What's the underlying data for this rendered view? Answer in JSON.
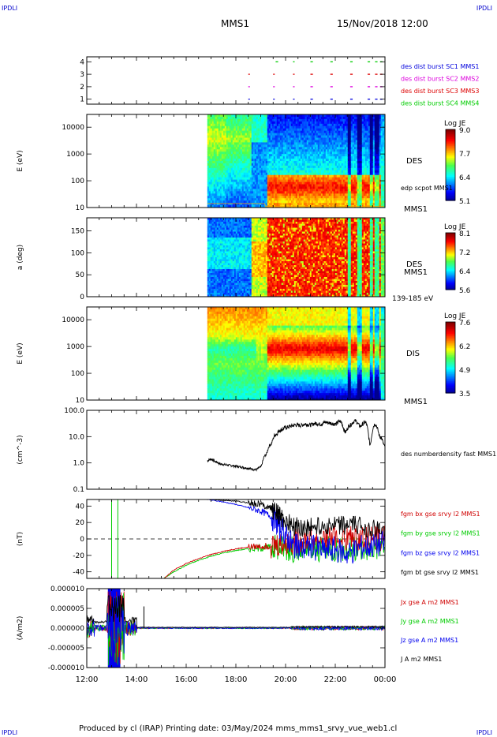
{
  "header": {
    "corner_left": "IPDLI",
    "corner_right": "IPDLI",
    "spacecraft": "MMS1",
    "datetime": "15/Nov/2018 12:00"
  },
  "footer": {
    "credit": "Produced by cl (IRAP)   Printing date: 03/May/2024   mms_mms1_srvy_vue_web1.cl",
    "corner_left": "IPDLI",
    "corner_right": "IPDLI"
  },
  "time_axis": {
    "start_hours": 12,
    "end_hours": 24,
    "tick_labels": [
      "12:00",
      "14:00",
      "16:00",
      "18:00",
      "20:00",
      "22:00",
      "00:00"
    ]
  },
  "colors": {
    "bx": "#d00000",
    "by": "#00cc00",
    "bz": "#0000ee",
    "bt": "#000000",
    "mms1": "#0000dd",
    "mms2": "#dd00dd",
    "mms3": "#dd0000",
    "mms4": "#00cc00"
  },
  "chart_data": [
    {
      "type": "scatter",
      "id": "burst",
      "y_ticks": [
        "1",
        "2",
        "3",
        "4"
      ],
      "ylim": [
        0.6,
        4.4
      ],
      "legend": [
        {
          "name": "des dist burst SC1 MMS1",
          "color": "#0000dd"
        },
        {
          "name": "des dist burst SC2 MMS2",
          "color": "#dd00dd"
        },
        {
          "name": "des dist burst SC3 MMS3",
          "color": "#dd0000"
        },
        {
          "name": "des dist burst SC4 MMS4",
          "color": "#00cc00"
        }
      ],
      "series": [
        {
          "level": 1,
          "color": "#0000dd",
          "segments": [
            [
              18.5,
              18.52
            ],
            [
              19.5,
              19.55
            ],
            [
              20.3,
              20.35
            ],
            [
              21.0,
              21.1
            ],
            [
              21.8,
              21.9
            ],
            [
              22.6,
              22.7
            ],
            [
              23.3,
              23.4
            ],
            [
              23.6,
              23.7
            ],
            [
              23.8,
              23.9
            ]
          ]
        },
        {
          "level": 2,
          "color": "#dd00dd",
          "segments": [
            [
              18.5,
              18.52
            ],
            [
              19.5,
              19.55
            ],
            [
              20.3,
              20.35
            ],
            [
              21.0,
              21.1
            ],
            [
              21.8,
              21.9
            ],
            [
              22.6,
              22.7
            ],
            [
              23.3,
              23.4
            ],
            [
              23.6,
              23.7
            ],
            [
              23.8,
              23.9
            ]
          ]
        },
        {
          "level": 3,
          "color": "#dd0000",
          "segments": [
            [
              18.5,
              18.52
            ],
            [
              19.5,
              19.55
            ],
            [
              20.3,
              20.35
            ],
            [
              21.0,
              21.1
            ],
            [
              21.8,
              21.9
            ],
            [
              22.6,
              22.7
            ],
            [
              23.3,
              23.4
            ],
            [
              23.6,
              23.7
            ],
            [
              23.8,
              23.9
            ]
          ]
        },
        {
          "level": 4,
          "color": "#00cc00",
          "segments": [
            [
              19.6,
              19.7
            ],
            [
              20.3,
              20.35
            ],
            [
              21.0,
              21.1
            ],
            [
              21.8,
              21.9
            ],
            [
              22.6,
              22.7
            ],
            [
              23.3,
              23.4
            ],
            [
              23.6,
              23.7
            ],
            [
              23.8,
              23.9
            ]
          ]
        }
      ]
    },
    {
      "type": "heatmap",
      "id": "des_energy",
      "ylabel": "E (eV)",
      "y_scale": "log",
      "ylim": [
        10,
        30000
      ],
      "y_ticks": [
        10,
        100,
        1000,
        10000
      ],
      "y_tick_labels": [
        "10",
        "100",
        "1000",
        "10000"
      ],
      "instrument_label": "DES",
      "spacecraft_label": "MMS1",
      "overlay_label": "edp scpot MMS1",
      "colorbar": {
        "title": "Log JE",
        "min": 5.1,
        "max": 9.05,
        "tick_labels": [
          "9.0",
          "7.7",
          "6.4",
          "5.1"
        ]
      },
      "data_start_hours": 16.85
    },
    {
      "type": "heatmap",
      "id": "des_pitch",
      "ylabel": "a (deg)",
      "ylim": [
        0,
        180
      ],
      "y_ticks": [
        0,
        50,
        100,
        150
      ],
      "y_tick_labels": [
        "0",
        "50",
        "100",
        "150"
      ],
      "instrument_label": "DES",
      "spacecraft_label": "MMS1",
      "energy_label": "139-185 eV",
      "colorbar": {
        "title": "Log JE",
        "min": 5.6,
        "max": 8.15,
        "tick_labels": [
          "8.1",
          "7.2",
          "6.4",
          "5.6"
        ]
      },
      "data_start_hours": 16.85
    },
    {
      "type": "heatmap",
      "id": "dis_energy",
      "ylabel": "E (eV)",
      "y_scale": "log",
      "ylim": [
        10,
        30000
      ],
      "y_ticks": [
        10,
        100,
        1000,
        10000
      ],
      "y_tick_labels": [
        "10",
        "100",
        "1000",
        "10000"
      ],
      "instrument_label": "DIS",
      "spacecraft_label": "MMS1",
      "colorbar": {
        "title": "Log JE",
        "min": 3.5,
        "max": 7.7,
        "tick_labels": [
          "7.6",
          "6.2",
          "4.9",
          "3.5"
        ]
      },
      "data_start_hours": 16.85
    },
    {
      "type": "line",
      "id": "density",
      "ylabel": "(cm^-3)",
      "y_scale": "log",
      "ylim": [
        0.1,
        100
      ],
      "y_ticks": [
        0.1,
        1,
        10,
        100
      ],
      "y_tick_labels": [
        "0.1",
        "1.0",
        "10.0",
        "100.0"
      ],
      "legend": [
        {
          "name": "des numberdensity fast MMS1",
          "color": "#000000"
        }
      ],
      "series": [
        {
          "name": "des numberdensity fast MMS1",
          "color": "#000000",
          "x": [
            16.85,
            17.0,
            17.2,
            17.4,
            17.6,
            17.8,
            18.0,
            18.2,
            18.4,
            18.6,
            18.8,
            19.0,
            19.2,
            19.4,
            19.6,
            19.8,
            20.0,
            20.2,
            20.4,
            20.6,
            20.8,
            21.0,
            21.2,
            21.4,
            21.6,
            21.8,
            22.0,
            22.2,
            22.4,
            22.6,
            22.8,
            23.0,
            23.2,
            23.4,
            23.6,
            23.8,
            24.0
          ],
          "y": [
            1.2,
            1.4,
            1.1,
            0.9,
            0.85,
            0.8,
            0.75,
            0.7,
            0.65,
            0.6,
            0.55,
            0.7,
            2.0,
            5.0,
            12.0,
            18.0,
            22.0,
            25.0,
            28.0,
            27.0,
            30.0,
            28.0,
            32.0,
            30.0,
            35.0,
            33.0,
            30.0,
            38.0,
            15.0,
            28.0,
            40.0,
            25.0,
            35.0,
            5.0,
            30.0,
            10.0,
            4.0
          ]
        }
      ]
    },
    {
      "type": "line",
      "id": "bfield",
      "ylabel": "(nT)",
      "ylim": [
        -48,
        48
      ],
      "y_ticks": [
        -40,
        -20,
        0,
        20,
        40
      ],
      "y_tick_labels": [
        "-40",
        "-20",
        "0",
        "20",
        "40"
      ],
      "legend": [
        {
          "name": "fgm bx gse srvy l2 MMS1",
          "color": "#d00000"
        },
        {
          "name": "fgm by gse srvy l2 MMS1",
          "color": "#00cc00"
        },
        {
          "name": "fgm bz gse srvy l2 MMS1",
          "color": "#0000ee"
        },
        {
          "name": "fgm bt gse srvy l2 MMS1",
          "color": "#000000"
        }
      ],
      "series": [
        {
          "name": "fgm bx gse srvy l2 MMS1",
          "color": "#d00000",
          "x": [
            15.1,
            15.5,
            16.0,
            16.5,
            17.0,
            17.5,
            18.0,
            18.5,
            19.0,
            19.4,
            19.8,
            20.2,
            20.6,
            21.0,
            21.5,
            22.0,
            22.5,
            23.0,
            23.5,
            24.0
          ],
          "y": [
            -48,
            -38,
            -30,
            -24,
            -19,
            -15,
            -12,
            -10,
            -9,
            -8,
            -6,
            -4,
            -2,
            -1,
            0,
            1,
            0,
            1,
            2,
            1
          ]
        },
        {
          "name": "fgm by gse srvy l2 MMS1",
          "color": "#00cc00",
          "x": [
            15.1,
            15.5,
            16.0,
            16.5,
            17.0,
            17.5,
            18.0,
            18.5,
            19.0,
            19.4,
            19.8,
            20.2,
            20.6,
            21.0,
            21.5,
            22.0,
            22.5,
            23.0,
            23.5,
            24.0
          ],
          "y": [
            -48,
            -40,
            -32,
            -26,
            -21,
            -17,
            -14,
            -12,
            -11,
            -10,
            -9,
            -12,
            -15,
            -14,
            -13,
            -12,
            -14,
            -13,
            -10,
            -8
          ]
        },
        {
          "name": "fgm bz gse srvy l2 MMS1",
          "color": "#0000ee",
          "x": [
            16.85,
            17.5,
            18.0,
            18.5,
            19.0,
            19.4,
            19.7,
            20.0,
            20.3,
            20.6,
            21.0,
            21.5,
            22.0,
            22.5,
            23.0,
            23.5,
            24.0
          ],
          "y": [
            48,
            45,
            42,
            38,
            34,
            28,
            18,
            5,
            -8,
            -12,
            -10,
            -14,
            -12,
            -18,
            -10,
            -8,
            -5
          ]
        },
        {
          "name": "fgm bt gse srvy l2 MMS1",
          "color": "#000000",
          "x": [
            16.85,
            17.5,
            18.0,
            18.5,
            19.0,
            19.4,
            19.7,
            20.0,
            20.3,
            20.6,
            21.0,
            21.5,
            22.0,
            22.5,
            23.0,
            23.5,
            24.0
          ],
          "y": [
            48,
            47,
            46,
            44,
            42,
            38,
            30,
            22,
            15,
            14,
            15,
            16,
            15,
            17,
            16,
            12,
            8
          ]
        }
      ]
    },
    {
      "type": "line",
      "id": "current",
      "ylabel": "(A/m2)",
      "ylim": [
        -1e-05,
        1e-05
      ],
      "y_ticks": [
        -1e-05,
        -5e-06,
        0,
        5e-06,
        1e-05
      ],
      "y_tick_labels": [
        "-0.000010",
        "-0.000005",
        "0.000000",
        "0.000005",
        "0.000010"
      ],
      "legend": [
        {
          "name": "Jx gse A m2 MMS1",
          "color": "#d00000"
        },
        {
          "name": "Jy gse A m2 MMS1",
          "color": "#00cc00"
        },
        {
          "name": "Jz gse A m2 MMS1",
          "color": "#0000ee"
        },
        {
          "name": "J A m2 MMS1",
          "color": "#000000"
        }
      ]
    }
  ]
}
